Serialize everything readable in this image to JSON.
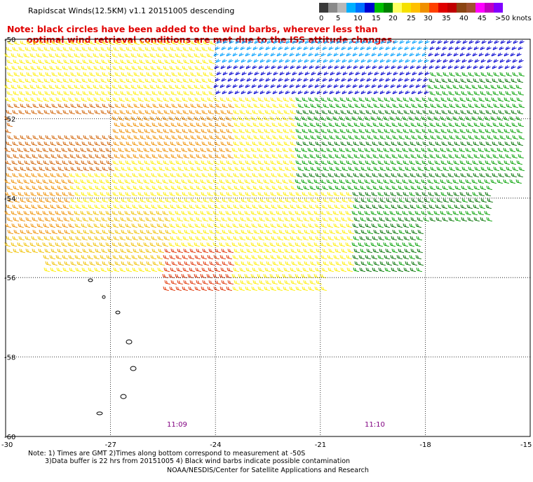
{
  "title": "Rapidscat Winds(12.5KM) v1.1 20151005 descending",
  "notes": [
    "Note: black circles have been added to the wind barbs, wherever less than",
    "optimal wind retrieval conditions are met due to the ISS attitude changes."
  ],
  "color_scale": {
    "labels": [
      "0",
      "5",
      "10",
      "15",
      "20",
      "25",
      "30",
      "35",
      "40",
      "45",
      ">50 knots"
    ],
    "colors": [
      "#3a3a3a",
      "#8a8a8a",
      "#b8b8b8",
      "#00b0ff",
      "#0070ff",
      "#0000d0",
      "#00c000",
      "#008000",
      "#ffff60",
      "#f5e000",
      "#ffc000",
      "#f09000",
      "#ff4000",
      "#e00000",
      "#c00000",
      "#8b4513",
      "#a05030",
      "#ff00ff",
      "#c000c0",
      "#8000ff"
    ],
    "colors_per_label": 2
  },
  "axes": {
    "x_labels": [
      "-30",
      "-27",
      "-24",
      "-21",
      "-18",
      "-15"
    ],
    "y_labels": [
      "-50",
      "-52",
      "-54",
      "-56",
      "-58",
      "-60"
    ]
  },
  "times": [
    "11:09",
    "11:10"
  ],
  "footer": {
    "line1": "Note: 1) Times are GMT 2)Times along bottom correspond to measurement at -50S",
    "line2": "3)Data buffer is 22 hrs from 20151005 4) Black wind barbs indicate possible contamination",
    "line3": "NOAA/NESDIS/Center for Satellite Applications and Research"
  },
  "map_data": {
    "lon_range": [
      -30,
      -15
    ],
    "lat_range": [
      -60,
      -50
    ],
    "wind_speed_regions": [
      {
        "speed_class": "green",
        "color": "#00a000"
      },
      {
        "speed_class": "dark-green",
        "color": "#007000"
      },
      {
        "speed_class": "blue",
        "color": "#0000d0"
      },
      {
        "speed_class": "light-blue",
        "color": "#00a0ff"
      },
      {
        "speed_class": "yellow",
        "color": "#ffee00"
      },
      {
        "speed_class": "gold",
        "color": "#f0c000"
      },
      {
        "speed_class": "orange",
        "color": "#f09000"
      },
      {
        "speed_class": "dark-orange",
        "color": "#d06000"
      },
      {
        "speed_class": "red",
        "color": "#e03000"
      },
      {
        "speed_class": "contaminated",
        "color": "#000000"
      }
    ]
  }
}
